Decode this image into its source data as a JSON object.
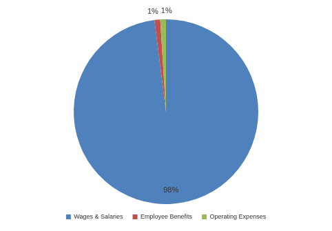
{
  "chart_data": {
    "type": "pie",
    "categories": [
      "Wages & Salaries",
      "Employee Benefits",
      "Operating Expenses"
    ],
    "values": [
      98,
      1,
      1
    ],
    "value_labels": [
      "98%",
      "1%",
      "1%"
    ],
    "colors": [
      "#4f81bd",
      "#c0504d",
      "#9bbb59"
    ],
    "data_labels": true,
    "legend": "bottom"
  }
}
